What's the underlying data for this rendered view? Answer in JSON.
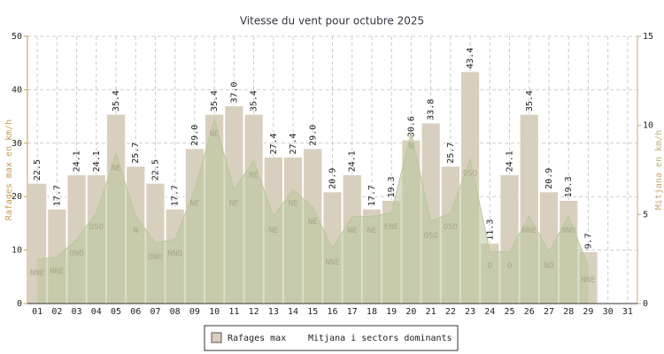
{
  "chart_data": {
    "type": "bar",
    "title": "Vitesse du vent pour octubre 2025",
    "y_label": "Rafages max en km/h",
    "y2_label": "Mitjana en km/h",
    "categories": [
      "01",
      "02",
      "03",
      "04",
      "05",
      "06",
      "07",
      "08",
      "09",
      "10",
      "11",
      "12",
      "13",
      "14",
      "15",
      "16",
      "17",
      "18",
      "19",
      "20",
      "21",
      "22",
      "23",
      "24",
      "25",
      "26",
      "27",
      "28",
      "29",
      "30",
      "31"
    ],
    "series": [
      {
        "name": "Rafages max",
        "color": "#d9cfbe",
        "values": [
          22.5,
          17.7,
          24.1,
          24.1,
          35.4,
          25.7,
          22.5,
          17.7,
          29.0,
          35.4,
          37.0,
          35.4,
          27.4,
          27.4,
          29.0,
          20.9,
          24.1,
          17.7,
          19.3,
          30.6,
          33.8,
          25.7,
          43.4,
          11.3,
          24.1,
          35.4,
          20.9,
          19.3,
          9.7,
          null,
          null
        ],
        "value_labels": [
          "22.5",
          "17.7",
          "24.1",
          "24.1",
          "35.4",
          "25.7",
          "22.5",
          "17.7",
          "29.0",
          "35.4",
          "37.0",
          "35.4",
          "27.4",
          "27.4",
          "29.0",
          "20.9",
          "24.1",
          "17.7",
          "19.3",
          "30.6",
          "33.8",
          "25.7",
          "43.4",
          "11.3",
          "24.1",
          "35.4",
          "20.9",
          "19.3",
          "9.7",
          null,
          null
        ]
      },
      {
        "name": "Mitjana i sectors dominants",
        "color": "#b9c79c",
        "axis": "y2",
        "values": [
          2.5,
          2.6,
          3.6,
          5.1,
          8.4,
          4.9,
          3.4,
          3.6,
          6.4,
          10.3,
          6.4,
          8.0,
          4.9,
          6.4,
          5.4,
          3.1,
          4.9,
          4.9,
          5.1,
          9.6,
          4.6,
          5.1,
          8.1,
          2.9,
          2.9,
          4.9,
          2.9,
          4.9,
          2.1,
          null,
          null
        ],
        "labels": [
          "NNE",
          "NNE",
          "ONO",
          "OSO",
          "NE",
          "N",
          "ONO",
          "NNO",
          "NE",
          "NE",
          "NE",
          "NE",
          "NE",
          "NE",
          "NE",
          "NNE",
          "NE",
          "NE",
          "ENE",
          "N",
          "OSO",
          "OSO",
          "OSO",
          "O",
          "O",
          "NNE",
          "NO",
          "NNO",
          "NNE",
          null,
          null
        ]
      }
    ],
    "ylim": [
      0,
      50
    ],
    "yticks": [
      0,
      10,
      20,
      30,
      40,
      50
    ],
    "y2lim": [
      0,
      15
    ],
    "y2ticks": [
      0,
      5,
      10,
      15
    ],
    "grid": true
  }
}
